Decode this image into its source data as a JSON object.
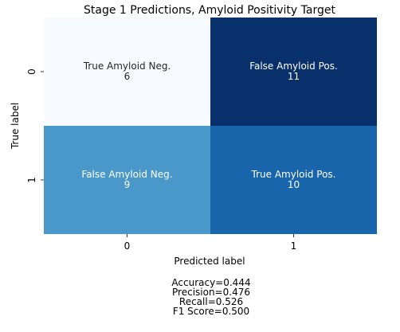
{
  "chart_data": {
    "type": "heatmap",
    "title": "Stage 1 Predictions, Amyloid Positivity Target",
    "xlabel": "Predicted label",
    "ylabel": "True label",
    "x_ticks": [
      "0",
      "1"
    ],
    "y_ticks": [
      "0",
      "1"
    ],
    "cells": [
      {
        "row": 0,
        "col": 0,
        "label": "True Amyloid Neg.",
        "value": 6,
        "color": "#f7fbff",
        "text_color": "#262626"
      },
      {
        "row": 0,
        "col": 1,
        "label": "False Amyloid Pos.",
        "value": 11,
        "color": "#08306b",
        "text_color": "#ffffff"
      },
      {
        "row": 1,
        "col": 0,
        "label": "False Amyloid Neg.",
        "value": 9,
        "color": "#4a98c9",
        "text_color": "#ffffff"
      },
      {
        "row": 1,
        "col": 1,
        "label": "True Amyloid Pos.",
        "value": 10,
        "color": "#1865ac",
        "text_color": "#ffffff"
      }
    ],
    "colormap": "Blues",
    "colorbar": false
  },
  "metrics": [
    "Accuracy=0.444",
    "Precision=0.476",
    "Recall=0.526",
    "F1 Score=0.500"
  ]
}
